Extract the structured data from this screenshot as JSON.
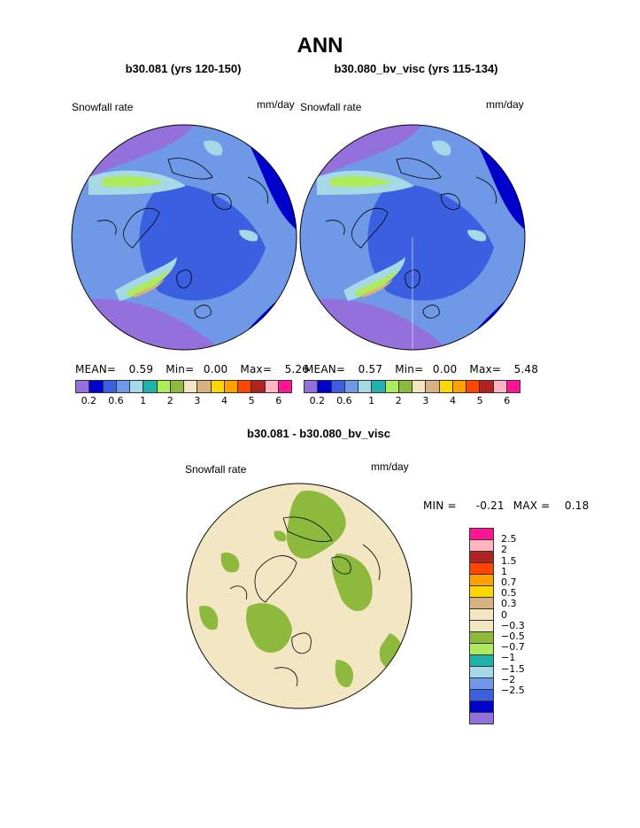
{
  "page_title": "ANN",
  "panels": [
    {
      "subtitle": "b30.081 (yrs 120-150)",
      "variable_label": "Snowfall rate",
      "units_label": "mm/day",
      "stats": {
        "mean_label": "MEAN=",
        "mean": "0.59",
        "min_label": "Min=",
        "min": "0.00",
        "max_label": "Max=",
        "max": "5.26"
      }
    },
    {
      "subtitle": "b30.080_bv_visc (yrs 115-134)",
      "variable_label": "Snowfall rate",
      "units_label": "mm/day",
      "stats": {
        "mean_label": "MEAN=",
        "mean": "0.57",
        "min_label": "Min=",
        "min": "0.00",
        "max_label": "Max=",
        "max": "5.48"
      }
    }
  ],
  "diff_panel": {
    "subtitle": "b30.081 - b30.080_bv_visc",
    "variable_label": "Snowfall rate",
    "units_label": "mm/day",
    "min_text": "MIN =",
    "min": "-0.21",
    "max_text": "MAX =",
    "max": "0.18"
  },
  "colorbar_main": {
    "colors": [
      "#9370db",
      "#0000cd",
      "#3a5fe0",
      "#6f98e6",
      "#a6d9e8",
      "#20b2aa",
      "#aeeb5c",
      "#8db93c",
      "#f3e6c3",
      "#d9b07f",
      "#ffd700",
      "#ff9f00",
      "#ff4500",
      "#b22222",
      "#ffb6c1",
      "#ff1493"
    ],
    "tick_labels": [
      "0.2",
      "0.6",
      "1",
      "2",
      "3",
      "4",
      "5",
      "6"
    ]
  },
  "colorbar_diff": {
    "colors": [
      "#ff1493",
      "#ffb6c1",
      "#b22222",
      "#ff4500",
      "#ff9f00",
      "#ffd700",
      "#d9b07f",
      "#f3e6c3",
      "#f3e6c3",
      "#8db93c",
      "#aeeb5c",
      "#20b2aa",
      "#a6d9e8",
      "#6f98e6",
      "#3a5fe0",
      "#0000cd",
      "#9370db"
    ],
    "tick_labels": [
      "2.5",
      "2",
      "1.5",
      "1",
      "0.7",
      "0.5",
      "0.3",
      "0",
      "−0.3",
      "−0.5",
      "−0.7",
      "−1",
      "−1.5",
      "−2",
      "−2.5"
    ]
  },
  "chart_data": [
    {
      "type": "heatmap",
      "title": "b30.081 (yrs 120-150)",
      "variable": "Snowfall rate",
      "units": "mm/day",
      "mean": 0.59,
      "min": 0.0,
      "max": 5.26,
      "levels": [
        0.2,
        0.4,
        0.6,
        0.8,
        1,
        1.5,
        2,
        2.5,
        3,
        3.5,
        4,
        4.5,
        5,
        5.5,
        6
      ]
    },
    {
      "type": "heatmap",
      "title": "b30.080_bv_visc (yrs 115-134)",
      "variable": "Snowfall rate",
      "units": "mm/day",
      "mean": 0.57,
      "min": 0.0,
      "max": 5.48,
      "levels": [
        0.2,
        0.4,
        0.6,
        0.8,
        1,
        1.5,
        2,
        2.5,
        3,
        3.5,
        4,
        4.5,
        5,
        5.5,
        6
      ]
    },
    {
      "type": "heatmap",
      "title": "b30.081 - b30.080_bv_visc",
      "variable": "Snowfall rate",
      "units": "mm/day",
      "min": -0.21,
      "max": 0.18,
      "levels": [
        -2.5,
        -2,
        -1.5,
        -1,
        -0.7,
        -0.5,
        -0.3,
        0,
        0.3,
        0.5,
        0.7,
        1,
        1.5,
        2,
        2.5
      ]
    }
  ]
}
